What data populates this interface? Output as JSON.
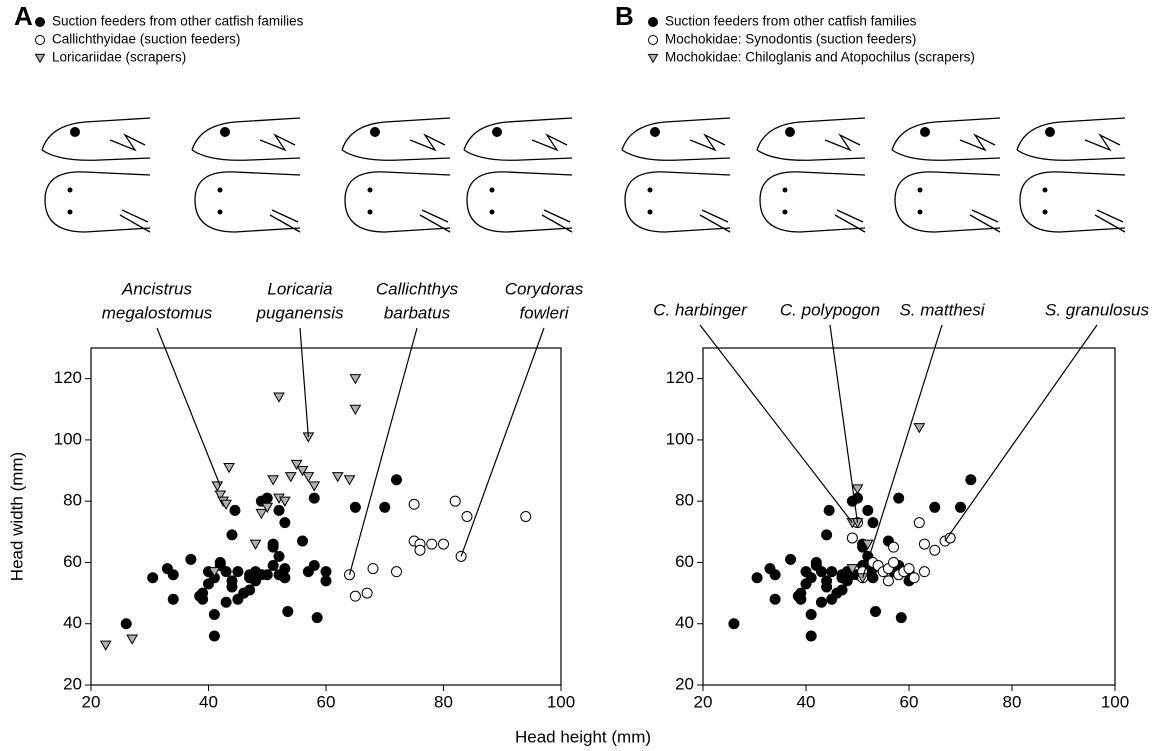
{
  "chart_data": [
    {
      "type": "scatter",
      "panel": "A",
      "xlabel": "Head height (mm)",
      "ylabel": "Head width (mm)",
      "xlim": [
        20,
        100
      ],
      "ylim": [
        20,
        130
      ],
      "xticks": [
        20,
        40,
        60,
        80,
        100
      ],
      "yticks": [
        20,
        40,
        60,
        80,
        100,
        120
      ],
      "series": [
        {
          "name": "Suction feeders from other catfish families",
          "marker": "circle",
          "color": "#000000",
          "x": [
            26,
            30.5,
            33,
            34,
            34,
            37,
            38.5,
            39,
            39,
            40,
            40,
            41,
            41,
            41,
            42,
            42,
            43,
            43,
            44,
            44,
            44,
            44.5,
            45,
            45,
            46,
            47,
            47,
            48,
            48,
            49,
            50,
            50,
            51,
            51,
            51,
            52,
            52,
            52,
            53,
            53,
            53,
            53.5,
            56,
            57,
            58,
            58,
            58.5,
            60,
            60,
            65,
            70,
            72,
            49,
            47
          ],
          "values": [
            40,
            55,
            58,
            48,
            56,
            61,
            49,
            50,
            48,
            53,
            57,
            43,
            36,
            55,
            60,
            59,
            57,
            47,
            54,
            52,
            69,
            77,
            48,
            57,
            50,
            51,
            56,
            54,
            57,
            80,
            81,
            56,
            59,
            66,
            65,
            56,
            77,
            62,
            73,
            58,
            55,
            44,
            67,
            57,
            81,
            59,
            42,
            54,
            57,
            78,
            78,
            87,
            56,
            55
          ]
        },
        {
          "name": "Callichthyidae (suction feeders)",
          "marker": "circle",
          "color": "#ffffff",
          "x": [
            64,
            65,
            67,
            68,
            72,
            75,
            75,
            76,
            76,
            78,
            80,
            82,
            83,
            84,
            94
          ],
          "values": [
            56,
            49,
            50,
            58,
            57,
            79,
            67,
            66,
            64,
            66,
            66,
            80,
            62,
            75,
            75
          ]
        },
        {
          "name": "Loricariidae (scrapers)",
          "marker": "triangle",
          "color": "#b0b0b0",
          "x": [
            22.5,
            27,
            41,
            41.5,
            42,
            42.5,
            43,
            43.5,
            48,
            49,
            50,
            51,
            52,
            52,
            53,
            54,
            55,
            56,
            57,
            57,
            58,
            62,
            64,
            65,
            65
          ],
          "values": [
            33,
            35,
            57,
            85,
            82,
            80,
            79,
            91,
            66,
            76,
            78,
            87,
            114,
            81,
            80,
            88,
            92,
            90,
            101,
            88,
            85,
            88,
            87,
            120,
            110
          ]
        }
      ],
      "annotations": [
        {
          "lines": [
            "Ancistrus",
            "megalostomus"
          ],
          "x": 42,
          "y": 85
        },
        {
          "lines": [
            "Loricaria",
            "puganensis"
          ],
          "x": 57,
          "y": 101
        },
        {
          "lines": [
            "Callichthys",
            "barbatus"
          ],
          "x": 64,
          "y": 56
        },
        {
          "lines": [
            "Corydoras",
            "fowleri"
          ],
          "x": 83,
          "y": 62
        }
      ]
    },
    {
      "type": "scatter",
      "panel": "B",
      "xlim": [
        20,
        100
      ],
      "ylim": [
        20,
        130
      ],
      "xticks": [
        20,
        40,
        60,
        80,
        100
      ],
      "yticks": [
        20,
        40,
        60,
        80,
        100,
        120
      ],
      "series": [
        {
          "name": "Suction feeders from other catfish families",
          "marker": "circle",
          "color": "#000000",
          "x": [
            26,
            30.5,
            33,
            34,
            34,
            37,
            38.5,
            39,
            39,
            40,
            40,
            41,
            41,
            41,
            42,
            42,
            43,
            43,
            44,
            44,
            44,
            44.5,
            45,
            45,
            46,
            47,
            47,
            48,
            48,
            49,
            50,
            50,
            51,
            51,
            51,
            52,
            52,
            52,
            53,
            53,
            53,
            53.5,
            56,
            57,
            58,
            58,
            58.5,
            60,
            60,
            65,
            70,
            72,
            49,
            47
          ],
          "values": [
            40,
            55,
            58,
            48,
            56,
            61,
            49,
            50,
            48,
            53,
            57,
            43,
            36,
            55,
            60,
            59,
            57,
            47,
            54,
            52,
            69,
            77,
            48,
            57,
            50,
            51,
            56,
            54,
            57,
            80,
            81,
            56,
            59,
            66,
            65,
            56,
            77,
            62,
            73,
            58,
            55,
            44,
            67,
            57,
            81,
            59,
            42,
            54,
            57,
            78,
            78,
            87,
            56,
            55
          ]
        },
        {
          "name": "Mochokidae: Synodontis (suction feeders)",
          "marker": "circle",
          "color": "#ffffff",
          "x": [
            49,
            50,
            51,
            51,
            53,
            54,
            55,
            56,
            56,
            57,
            57,
            58,
            59,
            60,
            62,
            63,
            63,
            65,
            67,
            68,
            61
          ],
          "values": [
            68,
            73,
            55,
            57,
            60,
            59,
            57,
            58,
            54,
            65,
            60,
            56,
            57,
            58,
            73,
            57,
            66,
            64,
            67,
            68,
            55
          ]
        },
        {
          "name": "Mochokidae: Chiloglanis and Atopochilus (scrapers)",
          "marker": "triangle",
          "color": "#b0b0b0",
          "x": [
            49,
            50,
            50,
            51,
            52,
            49,
            62
          ],
          "values": [
            73,
            73,
            84,
            55,
            66,
            58,
            104
          ]
        }
      ],
      "annotations": [
        {
          "lines": [
            "C. harbinger"
          ],
          "x": 49,
          "y": 73
        },
        {
          "lines": [
            "C. polypogon"
          ],
          "x": 50,
          "y": 73
        },
        {
          "lines": [
            "S. matthesi"
          ],
          "x": 51,
          "y": 55
        },
        {
          "lines": [
            "S. granulosus"
          ],
          "x": 67,
          "y": 67
        }
      ]
    }
  ]
}
